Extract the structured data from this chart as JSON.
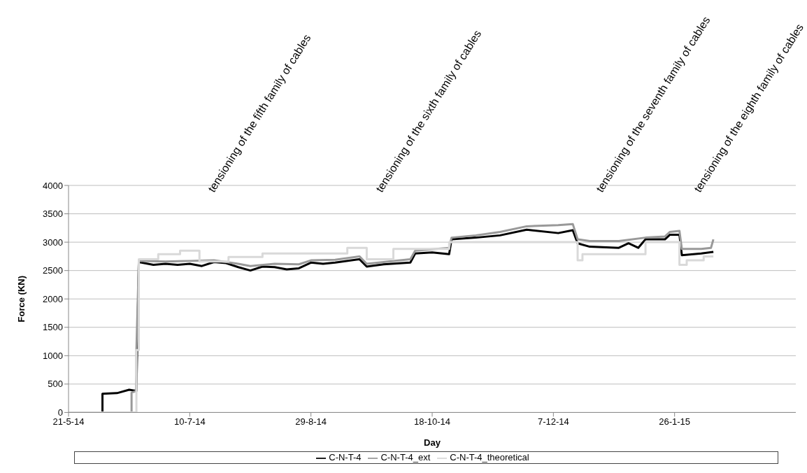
{
  "chart_data": {
    "type": "line",
    "xlabel": "Day",
    "ylabel": "Force (KN)",
    "xlim": [
      "2014-05-21",
      "2015-03-17"
    ],
    "xticks": [
      {
        "value": "2014-05-21",
        "label": "21-5-14"
      },
      {
        "value": "2014-07-10",
        "label": "10-7-14"
      },
      {
        "value": "2014-08-29",
        "label": "29-8-14"
      },
      {
        "value": "2014-10-18",
        "label": "18-10-14"
      },
      {
        "value": "2014-12-07",
        "label": "7-12-14"
      },
      {
        "value": "2015-01-26",
        "label": "26-1-15"
      }
    ],
    "ylim": [
      0,
      4000
    ],
    "yticks": [
      0,
      500,
      1000,
      1500,
      2000,
      2500,
      3000,
      3500,
      4000
    ],
    "grid": "y",
    "legend": "bottom",
    "marker": "none",
    "line_style": "solid",
    "series": [
      {
        "name": "C-N-T-4",
        "color": "#000000",
        "x": [
          "2014-05-21",
          "2014-06-04",
          "2014-06-04",
          "2014-06-10",
          "2014-06-15",
          "2014-06-18",
          "2014-06-19",
          "2014-06-25",
          "2014-06-30",
          "2014-07-05",
          "2014-07-10",
          "2014-07-15",
          "2014-07-20",
          "2014-07-25",
          "2014-07-30",
          "2014-08-04",
          "2014-08-09",
          "2014-08-14",
          "2014-08-19",
          "2014-08-24",
          "2014-08-29",
          "2014-09-03",
          "2014-09-08",
          "2014-09-18",
          "2014-09-21",
          "2014-09-28",
          "2014-10-09",
          "2014-10-11",
          "2014-10-18",
          "2014-10-25",
          "2014-10-26",
          "2014-11-05",
          "2014-11-15",
          "2014-11-26",
          "2014-12-09",
          "2014-12-15",
          "2014-12-17",
          "2014-12-22",
          "2015-01-03",
          "2015-01-07",
          "2015-01-11",
          "2015-01-14",
          "2015-01-22",
          "2015-01-24",
          "2015-01-28",
          "2015-01-29",
          "2015-02-06",
          "2015-02-11"
        ],
        "values": [
          0,
          0,
          330,
          340,
          400,
          380,
          2650,
          2600,
          2620,
          2600,
          2620,
          2580,
          2650,
          2630,
          2560,
          2500,
          2570,
          2560,
          2520,
          2540,
          2640,
          2620,
          2640,
          2700,
          2570,
          2610,
          2640,
          2800,
          2820,
          2790,
          3050,
          3080,
          3120,
          3220,
          3160,
          3210,
          2980,
          2920,
          2900,
          2980,
          2900,
          3050,
          3050,
          3130,
          3130,
          2770,
          2800,
          2830
        ]
      },
      {
        "name": "C-N-T-4_ext",
        "color": "#999999",
        "x": [
          "2014-05-21",
          "2014-06-16",
          "2014-06-16",
          "2014-06-18",
          "2014-06-18",
          "2014-06-19",
          "2014-06-30",
          "2014-07-10",
          "2014-07-20",
          "2014-07-30",
          "2014-08-04",
          "2014-08-14",
          "2014-08-24",
          "2014-08-29",
          "2014-09-08",
          "2014-09-18",
          "2014-09-21",
          "2014-09-28",
          "2014-10-09",
          "2014-10-11",
          "2014-10-25",
          "2014-10-26",
          "2014-11-05",
          "2014-11-15",
          "2014-11-26",
          "2014-12-09",
          "2014-12-15",
          "2014-12-17",
          "2014-12-22",
          "2015-01-03",
          "2015-01-14",
          "2015-01-22",
          "2015-01-24",
          "2015-01-28",
          "2015-01-29",
          "2015-02-06",
          "2015-02-10",
          "2015-02-11"
        ],
        "values": [
          0,
          0,
          350,
          380,
          1100,
          2670,
          2660,
          2670,
          2680,
          2620,
          2580,
          2620,
          2610,
          2680,
          2690,
          2750,
          2620,
          2650,
          2700,
          2850,
          2900,
          3080,
          3120,
          3180,
          3280,
          3300,
          3320,
          3050,
          3020,
          3020,
          3080,
          3100,
          3180,
          3200,
          2880,
          2880,
          2900,
          3050
        ]
      },
      {
        "name": "C-N-T-4_theoretical",
        "color": "#d9d9d9",
        "type": "step",
        "x": [
          "2014-05-21",
          "2014-06-18",
          "2014-06-18",
          "2014-06-19",
          "2014-06-27",
          "2014-07-06",
          "2014-07-14",
          "2014-07-26",
          "2014-08-09",
          "2014-09-13",
          "2014-09-21",
          "2014-10-02",
          "2014-10-25",
          "2014-12-17",
          "2014-12-19",
          "2015-01-14",
          "2015-01-28",
          "2015-01-31",
          "2015-02-07",
          "2015-02-11"
        ],
        "values": [
          0,
          0,
          1100,
          2700,
          2790,
          2850,
          2660,
          2740,
          2800,
          2900,
          2700,
          2880,
          3000,
          2680,
          2790,
          3000,
          2600,
          2680,
          2750,
          2750
        ]
      }
    ],
    "annotations": [
      "tensioning of the fifth family of cables",
      "tensioning of the sixth family of cables",
      "tensioning of the seventh family of cables",
      "tensioning of the eighth family of cables"
    ]
  }
}
